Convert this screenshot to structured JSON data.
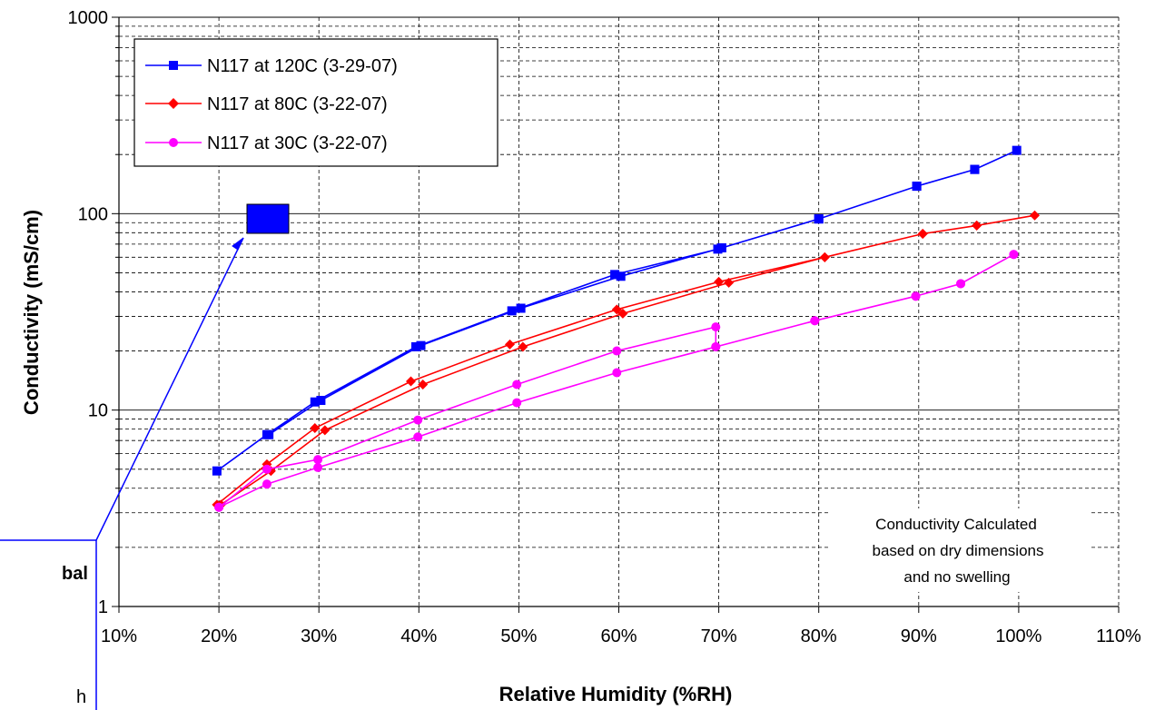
{
  "chart_data": {
    "type": "line",
    "title": "",
    "xlabel": "Relative Humidity (%RH)",
    "ylabel": "Conductivity (mS/cm)",
    "x_scale": "linear",
    "y_scale": "log",
    "xlim": [
      10,
      110
    ],
    "ylim": [
      1,
      1000
    ],
    "x_tick_labels": [
      "10%",
      "20%",
      "30%",
      "40%",
      "50%",
      "60%",
      "70%",
      "80%",
      "90%",
      "100%",
      "110%"
    ],
    "y_tick_labels": [
      "1",
      "10",
      "100",
      "1000"
    ],
    "grid": "major solid, minor dashed",
    "legend_position": "top-left",
    "series": [
      {
        "name": "N117 at 120C (3-29-07)",
        "color": "#0000ff",
        "marker": "square",
        "x": [
          19.8,
          24.8,
          29.6,
          39.7,
          49.3,
          59.6,
          69.9,
          80.0,
          89.8,
          95.6,
          99.8,
          95.6,
          89.8,
          80.0,
          70.3,
          60.2,
          50.2,
          40.2,
          30.2,
          25.0
        ],
        "y": [
          4.9,
          7.5,
          11.0,
          21.0,
          32.0,
          49.0,
          66.0,
          94.0,
          138.0,
          168.0,
          210.0,
          168.0,
          138.0,
          94.0,
          67.0,
          48.0,
          33.0,
          21.3,
          11.2,
          7.5
        ]
      },
      {
        "name": "N117 at 80C (3-22-07)",
        "color": "#ff0000",
        "marker": "diamond",
        "x": [
          19.8,
          24.8,
          29.6,
          39.2,
          49.1,
          59.8,
          70.0,
          80.6,
          90.4,
          95.8,
          101.6,
          95.8,
          90.4,
          80.6,
          71.0,
          60.4,
          50.4,
          40.4,
          30.6,
          25.2,
          20.2
        ],
        "y": [
          3.3,
          5.3,
          8.1,
          14.0,
          21.6,
          32.5,
          45.0,
          60.0,
          79.0,
          87.0,
          98.0,
          87.0,
          79.0,
          60.0,
          44.5,
          31.0,
          21.0,
          13.5,
          7.9,
          4.9,
          3.3
        ]
      },
      {
        "name": "N117 at 30C (3-22-07)",
        "color": "#ff00ff",
        "marker": "circle",
        "x": [
          20.0,
          24.8,
          29.9,
          39.9,
          49.8,
          59.8,
          69.7,
          69.7,
          79.6,
          89.7,
          94.2,
          99.5,
          99.5,
          94.2,
          89.7,
          79.6,
          69.7,
          59.8,
          49.8,
          39.9,
          29.9,
          24.8,
          20.0
        ],
        "y": [
          3.2,
          5.0,
          5.6,
          8.9,
          13.5,
          20.0,
          26.5,
          21.0,
          28.5,
          38.0,
          44.0,
          62.0,
          62.0,
          44.0,
          38.0,
          28.5,
          21.0,
          15.5,
          10.9,
          7.3,
          5.1,
          4.2,
          3.2
        ]
      }
    ],
    "annotations": [
      "Conductivity Calculated",
      "based on dry dimensions",
      "and no swelling"
    ],
    "callout_partial_text": [
      "bal",
      "h"
    ]
  }
}
